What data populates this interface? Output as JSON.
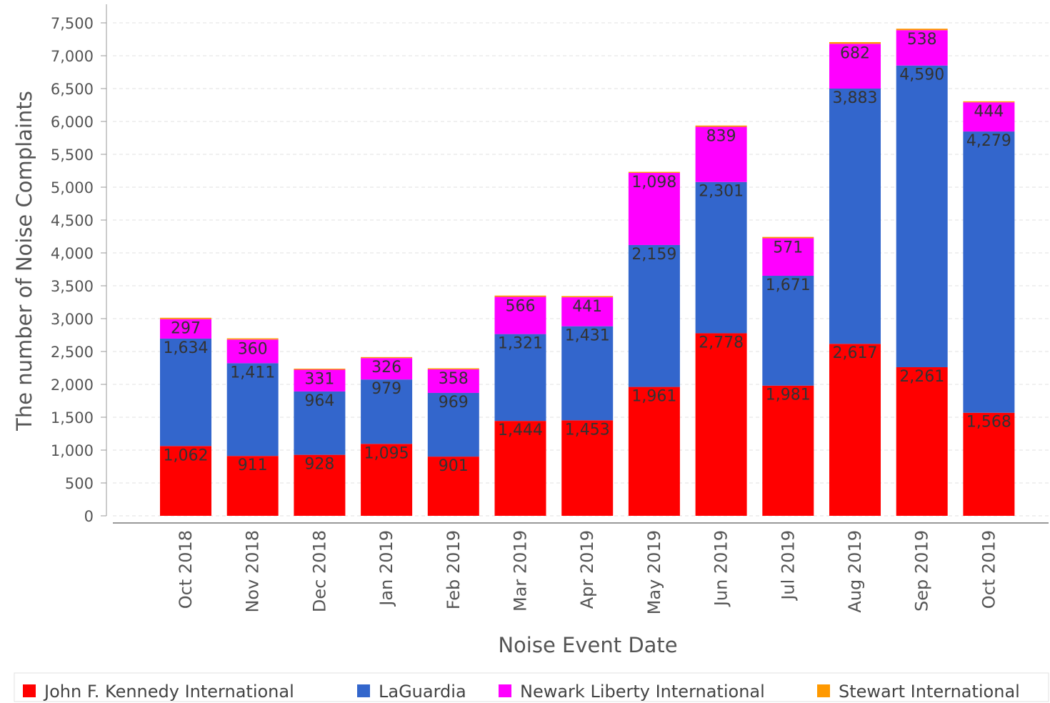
{
  "chart_data": {
    "type": "bar",
    "stacked": true,
    "title": "",
    "xlabel": "Noise Event Date",
    "ylabel": "The number of Noise Complaints",
    "ylim": [
      0,
      7500
    ],
    "yticks": [
      0,
      500,
      1000,
      1500,
      2000,
      2500,
      3000,
      3500,
      4000,
      4500,
      5000,
      5500,
      6000,
      6500,
      7000,
      7500
    ],
    "ytick_labels": [
      "0",
      "500",
      "1,000",
      "1,500",
      "2,000",
      "2,500",
      "3,000",
      "3,500",
      "4,000",
      "4,500",
      "5,000",
      "5,500",
      "6,000",
      "6,500",
      "7,000",
      "7,500"
    ],
    "grid": true,
    "legend_position": "bottom",
    "categories": [
      "Oct 2018",
      "Nov 2018",
      "Dec 2018",
      "Jan 2019",
      "Feb 2019",
      "Mar 2019",
      "Apr 2019",
      "May 2019",
      "Jun 2019",
      "Jul 2019",
      "Aug 2019",
      "Sep 2019",
      "Oct 2019"
    ],
    "series": [
      {
        "name": "John F. Kennedy International",
        "color": "#ff0000",
        "values": [
          1062,
          911,
          928,
          1095,
          901,
          1444,
          1453,
          1961,
          2778,
          1981,
          2617,
          2261,
          1568
        ],
        "labels": [
          "1,062",
          "911",
          "928",
          "1,095",
          "901",
          "1,444",
          "1,453",
          "1,961",
          "2,778",
          "1,981",
          "2,617",
          "2,261",
          "1,568"
        ]
      },
      {
        "name": "LaGuardia",
        "color": "#3366cc",
        "values": [
          1634,
          1411,
          964,
          979,
          969,
          1321,
          1431,
          2159,
          2301,
          1671,
          3883,
          4590,
          4279
        ],
        "labels": [
          "1,634",
          "1,411",
          "964",
          "979",
          "969",
          "1,321",
          "1,431",
          "2,159",
          "2,301",
          "1,671",
          "3,883",
          "4,590",
          "4,279"
        ]
      },
      {
        "name": "Newark Liberty International",
        "color": "#ff00ff",
        "values": [
          297,
          360,
          331,
          326,
          358,
          566,
          441,
          1098,
          839,
          571,
          682,
          538,
          444
        ],
        "labels": [
          "297",
          "360",
          "331",
          "326",
          "358",
          "566",
          "441",
          "1,098",
          "839",
          "571",
          "682",
          "538",
          "444"
        ]
      },
      {
        "name": "Stewart International",
        "color": "#ff9900",
        "values": [
          20,
          18,
          16,
          15,
          16,
          20,
          18,
          15,
          20,
          20,
          25,
          22,
          15
        ],
        "labels": []
      }
    ]
  }
}
